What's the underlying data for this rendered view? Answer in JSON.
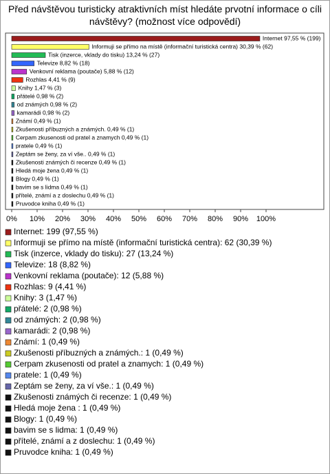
{
  "chart_data": {
    "type": "barh",
    "title": "Před návštěvou turisticky atraktivních míst hledáte prvotní informace o cíli návštěvy? (možnost více odpovědí)",
    "categories": [
      "Internet",
      "Informuji se přímo na místě (informační turistická centra)",
      "Tisk (inzerce, vklady do tisku)",
      "Televize",
      "Venkovní reklama (poutače)",
      "Rozhlas",
      "Knihy",
      "přátelé",
      "od známých",
      "kamarádi",
      "Známí",
      "Zkušenosti příbuzných a známých.",
      "Cerpam zkusenosti od pratel a znamych",
      "pratele",
      "Zeptám se ženy, za ví vše.",
      "Zkušenosti známých či recenze",
      "Hledá moje žena",
      "Blogy",
      "bavim se s lidma",
      "přítelé,  známí  a z doslechu",
      "Pruvodce kniha"
    ],
    "values": [
      97.55,
      30.39,
      13.24,
      8.82,
      5.88,
      4.41,
      1.47,
      0.98,
      0.98,
      0.98,
      0.49,
      0.49,
      0.49,
      0.49,
      0.49,
      0.49,
      0.49,
      0.49,
      0.49,
      0.49,
      0.49
    ],
    "value_labels": [
      "Internet 97,55 % (199)",
      "Informuji se přímo na místě (informační turistická centra) 30,39 % (62)",
      "Tisk (inzerce, vklady do tisku) 13,24 % (27)",
      "Televize 8,82 % (18)",
      "Venkovní reklama (poutače) 5,88 % (12)",
      "Rozhlas 4,41 % (9)",
      "Knihy 1,47 % (3)",
      "přátelé 0,98 % (2)",
      "od známých 0,98 % (2)",
      "kamarádi 0,98 % (2)",
      "Známí 0,49 % (1)",
      "Zkušenosti příbuzných a známých. 0,49 % (1)",
      "Cerpam zkusenosti od pratel a znamych 0,49 % (1)",
      "pratele 0,49 % (1)",
      "Zeptám se ženy, za ví vše.. 0,49 % (1)",
      "Zkušenosti známých či recenze 0,49 % (1)",
      "Hledá moje žena  0,49 % (1)",
      "Blogy 0,49 % (1)",
      "bavim se s lidma 0,49 % (1)",
      "přítelé,  známí  a z doslechu 0,49 % (1)",
      "Pruvodce kniha 0,49 % (1)"
    ],
    "legend_labels": [
      "Internet: 199 (97,55 %)",
      "Informuji se přímo na místě (informační turistická centra): 62 (30,39 %)",
      "Tisk (inzerce, vklady do tisku): 27 (13,24 %)",
      "Televize: 18 (8,82 %)",
      "Venkovní reklama (poutače): 12 (5,88 %)",
      "Rozhlas: 9 (4,41 %)",
      "Knihy: 3 (1,47 %)",
      "přátelé: 2 (0,98 %)",
      "od známých: 2 (0,98 %)",
      "kamarádi: 2 (0,98 %)",
      "Známí: 1 (0,49 %)",
      "Zkušenosti příbuzných a známých.: 1 (0,49 %)",
      "Cerpam zkusenosti od pratel a znamych: 1 (0,49 %)",
      "pratele: 1 (0,49 %)",
      "Zeptám se ženy, za ví vše.: 1 (0,49 %)",
      "Zkušenosti známých či recenze: 1 (0,49 %)",
      "Hledá moje žena : 1 (0,49 %)",
      "Blogy: 1 (0,49 %)",
      "bavim se s lidma: 1 (0,49 %)",
      "přítelé,  známí  a z doslechu: 1 (0,49 %)",
      "Pruvodce kniha: 1 (0,49 %)"
    ],
    "colors": [
      "#9b1c1c",
      "#ffff66",
      "#22bb55",
      "#3366ff",
      "#bb33cc",
      "#ee3311",
      "#ccff99",
      "#11aa66",
      "#338899",
      "#9966cc",
      "#ee8833",
      "#cccc22",
      "#55cc33",
      "#5588ee",
      "#6666aa",
      "#111111",
      "#111111",
      "#111111",
      "#111111",
      "#111111",
      "#111111"
    ],
    "xlim": [
      0,
      100
    ],
    "xticks": [
      {
        "value": 0,
        "label": "0%"
      },
      {
        "value": 10,
        "label": "10%"
      },
      {
        "value": 20,
        "label": "20%"
      },
      {
        "value": 30,
        "label": "30%"
      },
      {
        "value": 40,
        "label": "40%"
      },
      {
        "value": 50,
        "label": "50%"
      },
      {
        "value": 60,
        "label": "60%"
      },
      {
        "value": 70,
        "label": "70%"
      },
      {
        "value": 80,
        "label": "80%"
      },
      {
        "value": 90,
        "label": "90%"
      },
      {
        "value": 100,
        "label": "100%"
      }
    ]
  }
}
